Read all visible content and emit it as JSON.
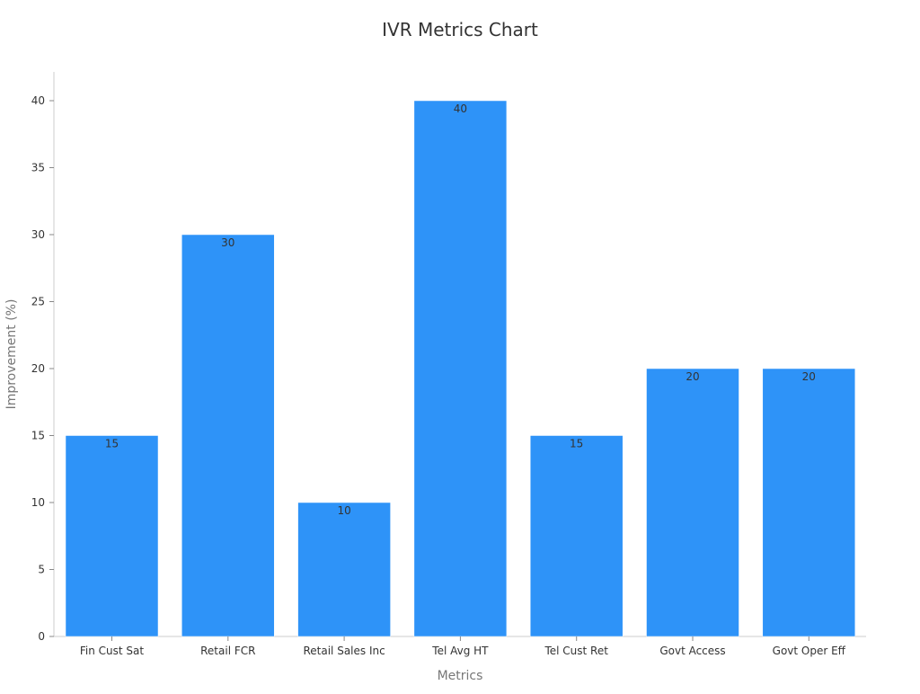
{
  "chart_data": {
    "type": "bar",
    "title": "IVR Metrics Chart",
    "xlabel": "Metrics",
    "ylabel": "Improvement (%)",
    "categories": [
      "Fin Cust Sat",
      "Retail FCR",
      "Retail Sales Inc",
      "Tel Avg HT",
      "Tel Cust Ret",
      "Govt Access",
      "Govt Oper Eff"
    ],
    "values": [
      15,
      30,
      10,
      40,
      15,
      20,
      20
    ],
    "ylim": [
      0,
      42
    ],
    "yticks": [
      0,
      5,
      10,
      15,
      20,
      25,
      30,
      35,
      40
    ],
    "grid": false,
    "legend": "none",
    "bar_color": "#2e93f8",
    "data_labels": true
  }
}
